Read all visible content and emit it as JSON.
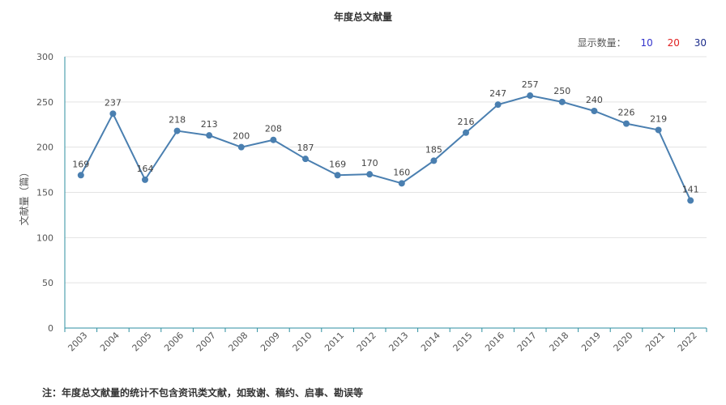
{
  "chart_data": {
    "type": "line",
    "title": "年度总文献量",
    "ylabel": "文献量（篇）",
    "xlabel": "",
    "ylim": [
      0,
      300
    ],
    "yticks": [
      0,
      50,
      100,
      150,
      200,
      250,
      300
    ],
    "grid": true,
    "categories": [
      "2003",
      "2004",
      "2005",
      "2006",
      "2007",
      "2008",
      "2009",
      "2010",
      "2011",
      "2012",
      "2013",
      "2014",
      "2015",
      "2016",
      "2017",
      "2018",
      "2019",
      "2020",
      "2021",
      "2022"
    ],
    "series": [
      {
        "values": [
          169,
          237,
          164,
          218,
          213,
          200,
          208,
          187,
          169,
          170,
          160,
          185,
          216,
          247,
          257,
          250,
          240,
          226,
          219,
          141
        ]
      }
    ],
    "colors": {
      "line": "#4a7fb0",
      "axis": "#2e8fa0",
      "grid": "#e3e3e3"
    }
  },
  "display_count": {
    "label": "显示数量：",
    "options": [
      {
        "text": "10",
        "color": "#3333cc"
      },
      {
        "text": "20",
        "color": "#e02020"
      },
      {
        "text": "30",
        "color": "#1a2a8a"
      }
    ]
  },
  "note": "注：年度总文献量的统计不包含资讯类文献，如致谢、稿约、启事、勘误等"
}
